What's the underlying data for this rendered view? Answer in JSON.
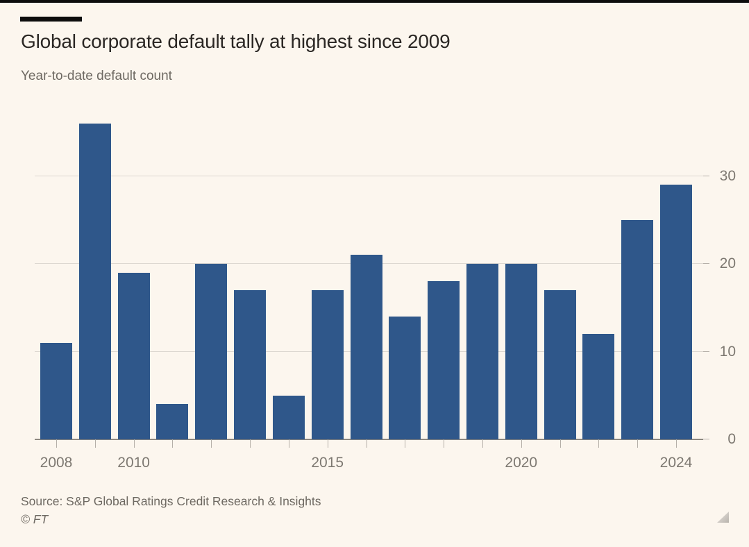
{
  "header": {
    "title": "Global corporate default tally at highest since 2009",
    "subtitle": "Year-to-date default count"
  },
  "chart_data": {
    "type": "bar",
    "title": "Global corporate default tally at highest since 2009",
    "subtitle": "Year-to-date default count",
    "categories": [
      2008,
      2009,
      2010,
      2011,
      2012,
      2013,
      2014,
      2015,
      2016,
      2017,
      2018,
      2019,
      2020,
      2021,
      2022,
      2023,
      2024
    ],
    "values": [
      11,
      36,
      19,
      4,
      20,
      17,
      5,
      17,
      21,
      14,
      18,
      20,
      20,
      17,
      12,
      25,
      29
    ],
    "xlabel": "",
    "ylabel": "",
    "x_tick_years": [
      2008,
      2010,
      2015,
      2020,
      2024
    ],
    "x_tick_labels": [
      "2008",
      "2010",
      "2015",
      "2020",
      "2024"
    ],
    "y_ticks": [
      0,
      10,
      20,
      30
    ],
    "ylim": [
      0,
      38.2
    ],
    "grid": "horizontal",
    "gridlines_at": [
      10,
      20,
      30
    ],
    "legend": "none",
    "y_axis_side": "right"
  },
  "footer": {
    "source": "Source: S&P Global Ratings Credit Research & Insights",
    "copyright": "© FT"
  },
  "icons": {
    "resize_handle": "resize-grip-triangle"
  },
  "colors": {
    "background": "#FCF6EE",
    "bar_color": "#2F578A",
    "title_color": "#2B2724",
    "subtitle_color": "#6E6962",
    "axis_label_color": "#7D7871",
    "grid_color": "#DCD7D0",
    "baseline_color": "#8E8981",
    "tick_color": "#B5AFA8",
    "rule_black": "#0D0D0D"
  }
}
